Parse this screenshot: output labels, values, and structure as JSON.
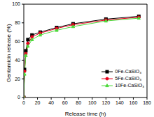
{
  "chart_data": {
    "type": "line",
    "x_label": "Release time (h)",
    "y_label": "Gentamicin release (%)",
    "x": [
      0,
      1,
      3,
      6,
      12,
      24,
      48,
      72,
      120,
      168
    ],
    "series": [
      {
        "name": "0Fe-CaSiO₃",
        "color": "#000000",
        "marker": "square",
        "values": [
          0,
          30,
          50,
          62,
          67,
          70,
          75,
          79,
          84,
          87
        ]
      },
      {
        "name": "5Fe-CaSiO₃",
        "color": "#e8001c",
        "marker": "circle",
        "values": [
          0,
          28,
          47,
          58,
          65,
          69,
          74,
          78,
          83,
          86
        ]
      },
      {
        "name": "10Fe-CaSiO₃",
        "color": "#4cd93a",
        "marker": "triangle",
        "values": [
          0,
          25,
          45,
          55,
          62,
          67,
          72,
          76,
          82,
          85
        ]
      }
    ],
    "xlim": [
      0,
      180
    ],
    "xticks": [
      0,
      20,
      40,
      60,
      80,
      100,
      120,
      140,
      160,
      180
    ],
    "ylim": [
      0,
      100
    ],
    "yticks": [
      0,
      20,
      40,
      60,
      80,
      100
    ],
    "legend": "lower right"
  }
}
